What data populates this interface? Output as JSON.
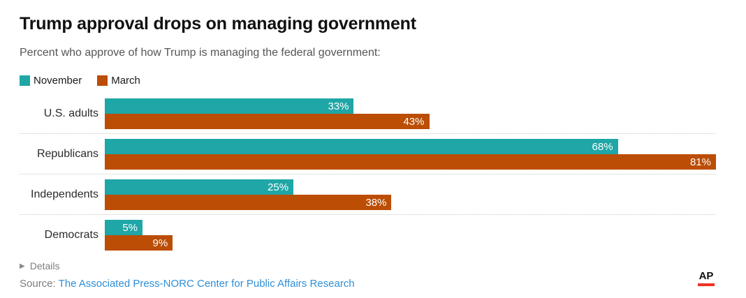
{
  "header": {
    "title": "Trump approval drops on managing government",
    "subtitle": "Percent who approve of how Trump is managing the federal government:"
  },
  "legend": [
    {
      "label": "November",
      "color": "#1FA6A6"
    },
    {
      "label": "March",
      "color": "#BB4D05"
    }
  ],
  "chart_data": {
    "type": "bar",
    "orientation": "horizontal",
    "title": "Trump approval drops on managing government",
    "subtitle": "Percent who approve of how Trump is managing the federal government:",
    "categories": [
      "U.S. adults",
      "Republicans",
      "Independents",
      "Democrats"
    ],
    "series": [
      {
        "name": "November",
        "color": "#1FA6A6",
        "values": [
          33,
          68,
          25,
          5
        ]
      },
      {
        "name": "March",
        "color": "#BB4D05",
        "values": [
          43,
          81,
          38,
          9
        ]
      }
    ],
    "value_suffix": "%",
    "xlim": [
      0,
      81
    ],
    "grid": false,
    "legend_position": "top-left",
    "value_labels": "inside-end"
  },
  "footer": {
    "details_label": "Details",
    "details_arrow": "▶",
    "source_prefix": "Source: ",
    "source_link": "The Associated Press-NORC Center for Public Affairs Research",
    "logo_text": "AP"
  },
  "colors": {
    "november": "#1FA6A6",
    "march": "#BB4D05",
    "link_blue": "#2E8ED6",
    "logo_red": "#EE3124"
  }
}
